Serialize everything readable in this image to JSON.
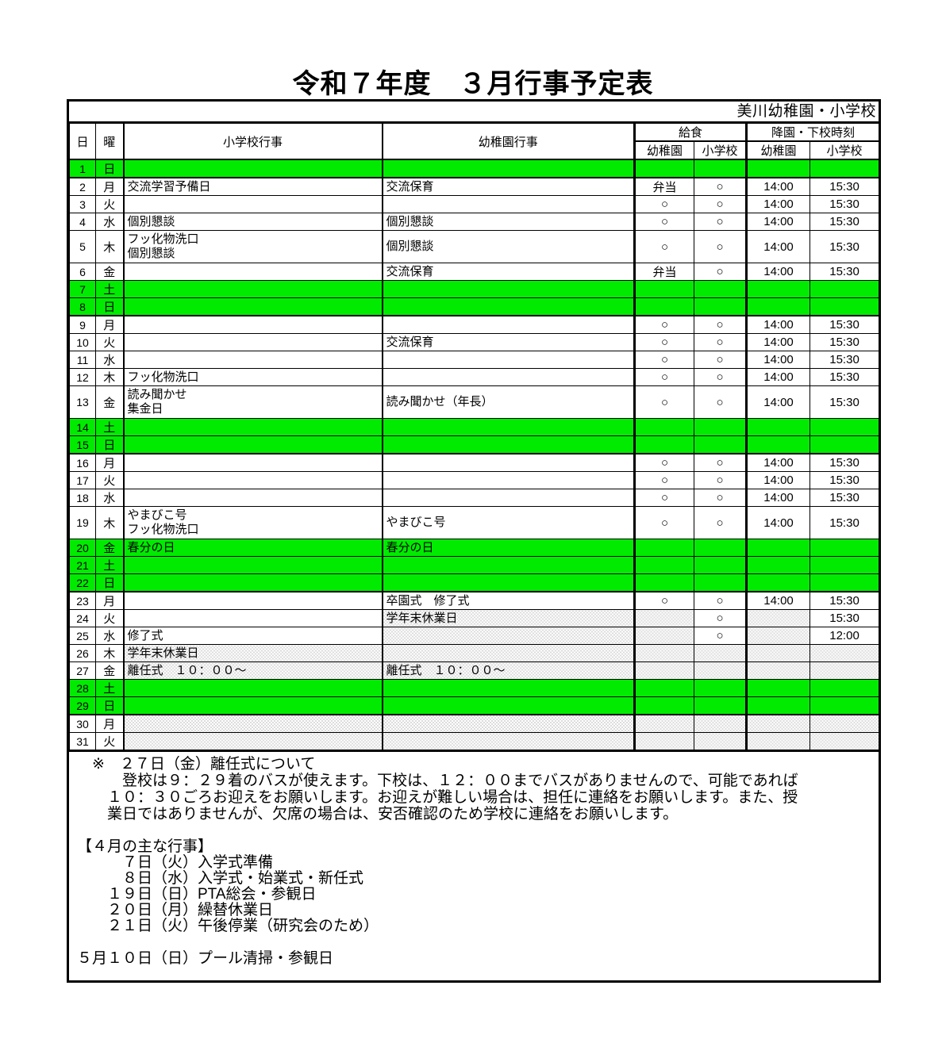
{
  "page_title": "令和７年度　３月行事予定表",
  "banner": "美川幼稚園・小学校",
  "colors": {
    "holiday_green": "#00EB00",
    "hatch_gray": "#DCDCDC",
    "border_black": "#000000"
  },
  "table": {
    "headers": {
      "day": "日",
      "weekday": "曜",
      "elem_events": "小学校行事",
      "kinder_events": "幼稚園行事",
      "lunch_group": "給食",
      "dismissal_group": "降園・下校時刻",
      "lunch_kg": "幼稚園",
      "lunch_es": "小学校",
      "time_kg": "幼稚園",
      "time_es": "小学校"
    },
    "rows": [
      {
        "day": "1",
        "weekday": "日",
        "elem": "",
        "kinder": "",
        "lunch_kg": "",
        "lunch_es": "",
        "time_kg": "",
        "time_es": "",
        "type": "holiday",
        "week_end": true
      },
      {
        "day": "2",
        "weekday": "月",
        "elem": "交流学習予備日",
        "kinder": "交流保育",
        "lunch_kg": "弁当",
        "lunch_es": "○",
        "time_kg": "14:00",
        "time_es": "15:30"
      },
      {
        "day": "3",
        "weekday": "火",
        "elem": "",
        "kinder": "",
        "lunch_kg": "○",
        "lunch_es": "○",
        "time_kg": "14:00",
        "time_es": "15:30"
      },
      {
        "day": "4",
        "weekday": "水",
        "elem": "個別懇談",
        "kinder": "個別懇談",
        "lunch_kg": "○",
        "lunch_es": "○",
        "time_kg": "14:00",
        "time_es": "15:30"
      },
      {
        "day": "5",
        "weekday": "木",
        "elem": "フッ化物洗口\n個別懇談",
        "kinder": "個別懇談",
        "lunch_kg": "○",
        "lunch_es": "○",
        "time_kg": "14:00",
        "time_es": "15:30",
        "tall": true
      },
      {
        "day": "6",
        "weekday": "金",
        "elem": "",
        "kinder": "交流保育",
        "lunch_kg": "弁当",
        "lunch_es": "○",
        "time_kg": "14:00",
        "time_es": "15:30"
      },
      {
        "day": "7",
        "weekday": "土",
        "elem": "",
        "kinder": "",
        "lunch_kg": "",
        "lunch_es": "",
        "time_kg": "",
        "time_es": "",
        "type": "holiday"
      },
      {
        "day": "8",
        "weekday": "日",
        "elem": "",
        "kinder": "",
        "lunch_kg": "",
        "lunch_es": "",
        "time_kg": "",
        "time_es": "",
        "type": "holiday",
        "week_end": true
      },
      {
        "day": "9",
        "weekday": "月",
        "elem": "",
        "kinder": "",
        "lunch_kg": "○",
        "lunch_es": "○",
        "time_kg": "14:00",
        "time_es": "15:30"
      },
      {
        "day": "10",
        "weekday": "火",
        "elem": "",
        "kinder": "交流保育",
        "lunch_kg": "○",
        "lunch_es": "○",
        "time_kg": "14:00",
        "time_es": "15:30"
      },
      {
        "day": "11",
        "weekday": "水",
        "elem": "",
        "kinder": "",
        "lunch_kg": "○",
        "lunch_es": "○",
        "time_kg": "14:00",
        "time_es": "15:30"
      },
      {
        "day": "12",
        "weekday": "木",
        "elem": "フッ化物洗口",
        "kinder": "",
        "lunch_kg": "○",
        "lunch_es": "○",
        "time_kg": "14:00",
        "time_es": "15:30"
      },
      {
        "day": "13",
        "weekday": "金",
        "elem": "読み聞かせ\n集金日",
        "kinder": "読み聞かせ（年長）",
        "lunch_kg": "○",
        "lunch_es": "○",
        "time_kg": "14:00",
        "time_es": "15:30",
        "tall": true
      },
      {
        "day": "14",
        "weekday": "土",
        "elem": "",
        "kinder": "",
        "lunch_kg": "",
        "lunch_es": "",
        "time_kg": "",
        "time_es": "",
        "type": "holiday"
      },
      {
        "day": "15",
        "weekday": "日",
        "elem": "",
        "kinder": "",
        "lunch_kg": "",
        "lunch_es": "",
        "time_kg": "",
        "time_es": "",
        "type": "holiday",
        "week_end": true
      },
      {
        "day": "16",
        "weekday": "月",
        "elem": "",
        "kinder": "",
        "lunch_kg": "○",
        "lunch_es": "○",
        "time_kg": "14:00",
        "time_es": "15:30"
      },
      {
        "day": "17",
        "weekday": "火",
        "elem": "",
        "kinder": "",
        "lunch_kg": "○",
        "lunch_es": "○",
        "time_kg": "14:00",
        "time_es": "15:30"
      },
      {
        "day": "18",
        "weekday": "水",
        "elem": "",
        "kinder": "",
        "lunch_kg": "○",
        "lunch_es": "○",
        "time_kg": "14:00",
        "time_es": "15:30"
      },
      {
        "day": "19",
        "weekday": "木",
        "elem": "やまびこ号\nフッ化物洗口",
        "kinder": "やまびこ号",
        "lunch_kg": "○",
        "lunch_es": "○",
        "time_kg": "14:00",
        "time_es": "15:30",
        "tall": true
      },
      {
        "day": "20",
        "weekday": "金",
        "elem": "春分の日",
        "kinder": "春分の日",
        "lunch_kg": "",
        "lunch_es": "",
        "time_kg": "",
        "time_es": "",
        "type": "holiday"
      },
      {
        "day": "21",
        "weekday": "土",
        "elem": "",
        "kinder": "",
        "lunch_kg": "",
        "lunch_es": "",
        "time_kg": "",
        "time_es": "",
        "type": "holiday"
      },
      {
        "day": "22",
        "weekday": "日",
        "elem": "",
        "kinder": "",
        "lunch_kg": "",
        "lunch_es": "",
        "time_kg": "",
        "time_es": "",
        "type": "holiday",
        "week_end": true
      },
      {
        "day": "23",
        "weekday": "月",
        "elem": "",
        "kinder": "卒園式　修了式",
        "lunch_kg": "○",
        "lunch_es": "○",
        "time_kg": "14:00",
        "time_es": "15:30"
      },
      {
        "day": "24",
        "weekday": "火",
        "elem": "",
        "kinder": "学年末休業日",
        "lunch_kg": "",
        "lunch_es": "○",
        "time_kg": "",
        "time_es": "15:30",
        "hatch": [
          "kinder",
          "lunch_kg",
          "time_kg"
        ]
      },
      {
        "day": "25",
        "weekday": "水",
        "elem": "修了式",
        "kinder": "",
        "lunch_kg": "",
        "lunch_es": "○",
        "time_kg": "",
        "time_es": "12:00",
        "hatch": [
          "kinder",
          "lunch_kg",
          "time_kg"
        ]
      },
      {
        "day": "26",
        "weekday": "木",
        "elem": "学年末休業日",
        "kinder": "",
        "lunch_kg": "",
        "lunch_es": "",
        "time_kg": "",
        "time_es": "",
        "hatch": [
          "elem",
          "kinder",
          "lunch_kg",
          "lunch_es",
          "time_kg",
          "time_es"
        ]
      },
      {
        "day": "27",
        "weekday": "金",
        "elem": "離任式　１０：００～",
        "kinder": "離任式　１０：００～",
        "lunch_kg": "",
        "lunch_es": "",
        "time_kg": "",
        "time_es": "",
        "hatch": [
          "elem",
          "kinder",
          "lunch_kg",
          "lunch_es",
          "time_kg",
          "time_es"
        ]
      },
      {
        "day": "28",
        "weekday": "土",
        "elem": "",
        "kinder": "",
        "lunch_kg": "",
        "lunch_es": "",
        "time_kg": "",
        "time_es": "",
        "type": "holiday"
      },
      {
        "day": "29",
        "weekday": "日",
        "elem": "",
        "kinder": "",
        "lunch_kg": "",
        "lunch_es": "",
        "time_kg": "",
        "time_es": "",
        "type": "holiday",
        "week_end": true
      },
      {
        "day": "30",
        "weekday": "月",
        "elem": "",
        "kinder": "",
        "lunch_kg": "",
        "lunch_es": "",
        "time_kg": "",
        "time_es": "",
        "hatch": [
          "elem",
          "kinder",
          "lunch_kg",
          "lunch_es",
          "time_kg",
          "time_es"
        ]
      },
      {
        "day": "31",
        "weekday": "火",
        "elem": "",
        "kinder": "",
        "lunch_kg": "",
        "lunch_es": "",
        "time_kg": "",
        "time_es": "",
        "hatch": [
          "elem",
          "kinder",
          "lunch_kg",
          "lunch_es",
          "time_kg",
          "time_es"
        ]
      }
    ]
  },
  "notes": {
    "lines": [
      "　※　２７日（金）離任式について",
      "　　　登校は９：２９着のバスが使えます。下校は、１２：００までバスがありませんので、可能であれば",
      "　　１０：３０ごろお迎えをお願いします。お迎えが難しい場合は、担任に連絡をお願いします。また、授",
      "　　業日ではありませんが、欠席の場合は、安否確認のため学校に連絡をお願いします。"
    ]
  },
  "april": {
    "heading": "【４月の主な行事】",
    "items": [
      "　　　７日（火）入学式準備",
      "　　　８日（水）入学式・始業式・新任式",
      "　　１９日（日）PTA総会・参観日",
      "　　２０日（月）繰替休業日",
      "　　２１日（火）午後停業（研究会のため）"
    ]
  },
  "may_event": "５月１０日（日）プール清掃・参観日"
}
